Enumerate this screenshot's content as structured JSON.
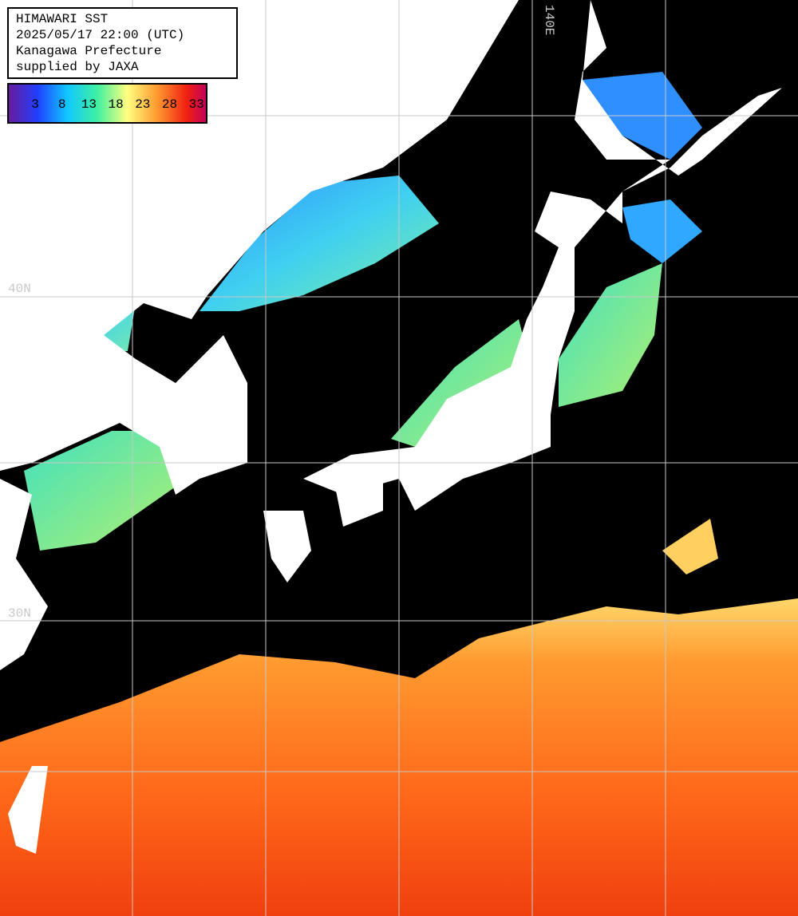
{
  "header": {
    "lines": [
      "HIMAWARI SST",
      "2025/05/17 22:00 (UTC)",
      "Kanagawa Prefecture",
      "supplied by JAXA"
    ]
  },
  "colorbar": {
    "labels": [
      3,
      8,
      13,
      18,
      23,
      28,
      33
    ]
  },
  "grid_labels": {
    "longitude": [
      "140E"
    ],
    "latitude": [
      "40N",
      "30N"
    ]
  }
}
